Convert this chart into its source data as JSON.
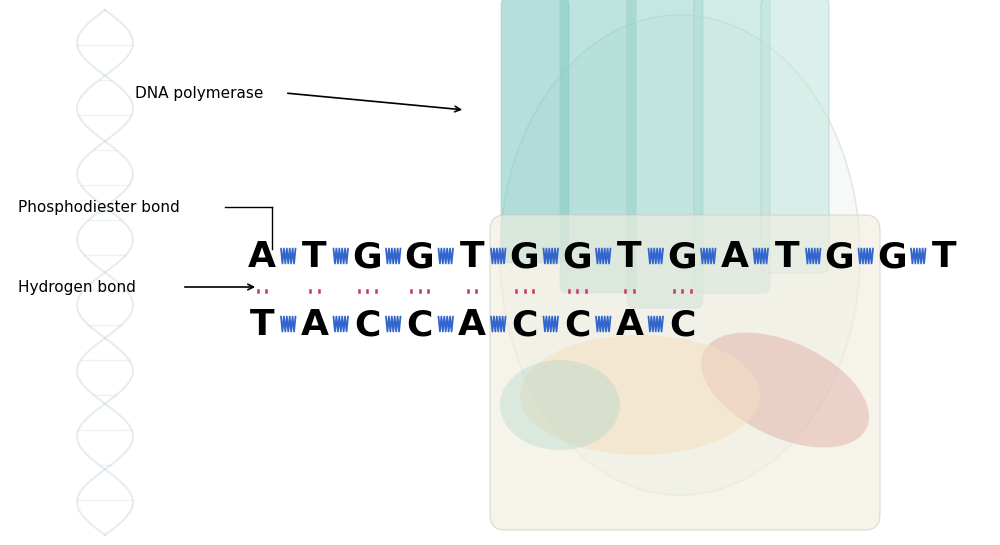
{
  "bg_color": "#ffffff",
  "top_sequence": "ATGGTGGTGATGGT",
  "bottom_sequence": "TACCACCAC",
  "label_dna_pol": "DNA polymerase",
  "label_phospho": "Phosphodiester bond",
  "label_hbond": "Hydrogen bond",
  "seq_fontsize": 26,
  "label_fontsize": 11,
  "hydrogen_bond_color": "#cc3366",
  "phosphodiester_color": "#3366cc",
  "finger_colors": [
    "#7ac8c0",
    "#8ad0c4",
    "#9fd5c8",
    "#b5ddd0",
    "#cce5d8"
  ],
  "palm_color": "#f0ebe0",
  "thumb_color": "#e8c0b8",
  "palm_peach": "#f5dfc0"
}
